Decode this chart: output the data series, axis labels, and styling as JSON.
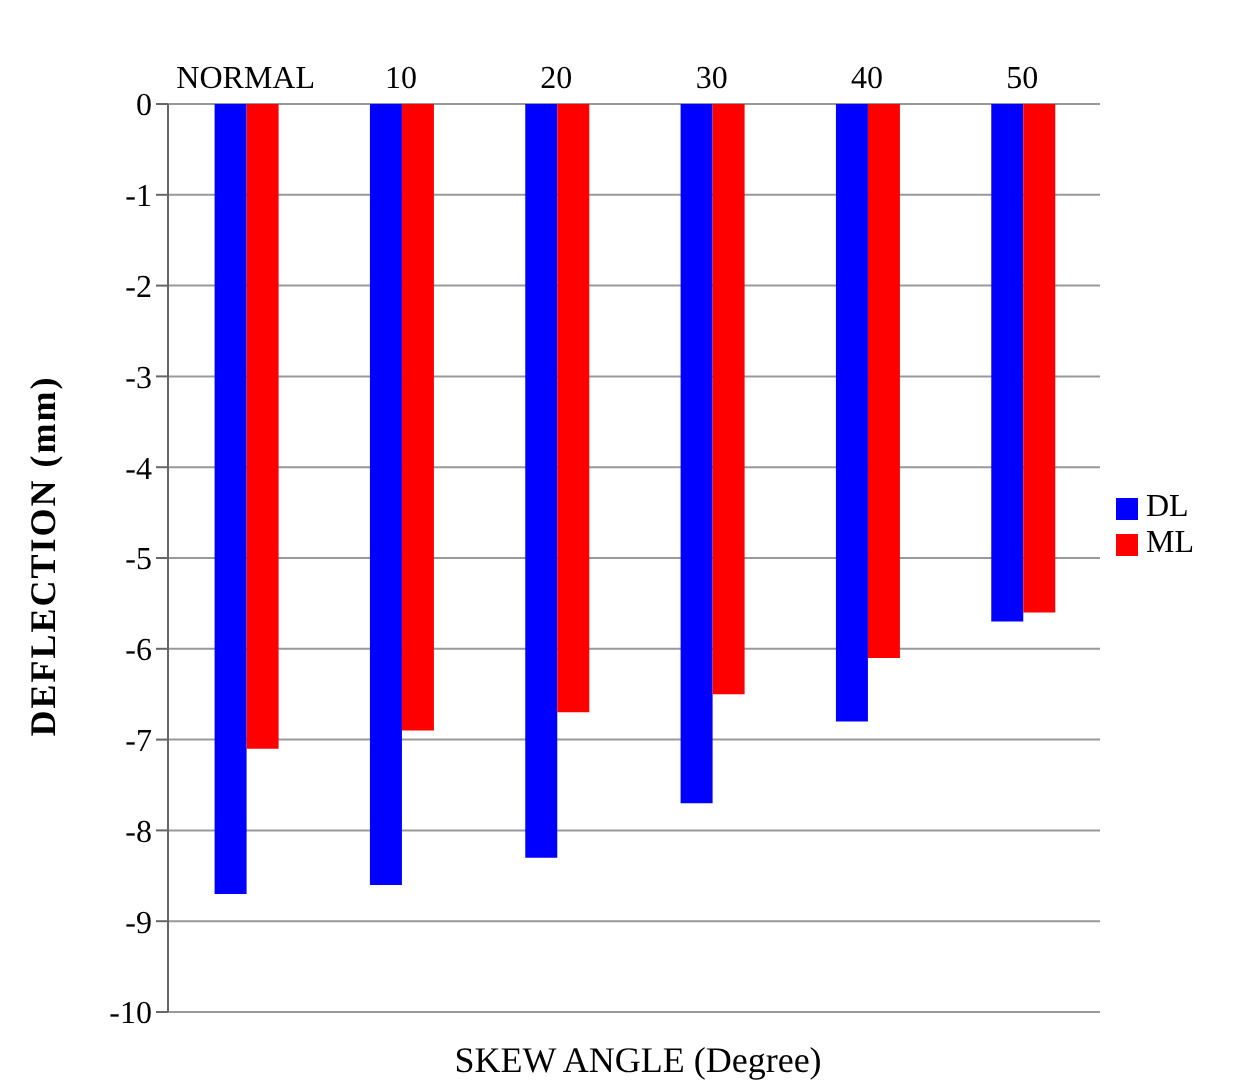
{
  "chart_data": {
    "type": "bar",
    "xlabel": "SKEW ANGLE (Degree)",
    "ylabel": "DEFLECTION (mm)",
    "categories": [
      "NORMAL",
      "10",
      "20",
      "30",
      "40",
      "50"
    ],
    "series": [
      {
        "name": "DL",
        "color": "#0000ff",
        "values": [
          -8.7,
          -8.6,
          -8.3,
          -7.7,
          -6.8,
          -5.7
        ]
      },
      {
        "name": "ML",
        "color": "#ff0000",
        "values": [
          -7.1,
          -6.9,
          -6.7,
          -6.5,
          -6.1,
          -5.6
        ]
      }
    ],
    "ylim": [
      -10,
      0
    ],
    "yticks": [
      -10,
      -9,
      -8,
      -7,
      -6,
      -5,
      -4,
      -3,
      -2,
      -1,
      0
    ],
    "grid": "y",
    "legend": "right"
  }
}
